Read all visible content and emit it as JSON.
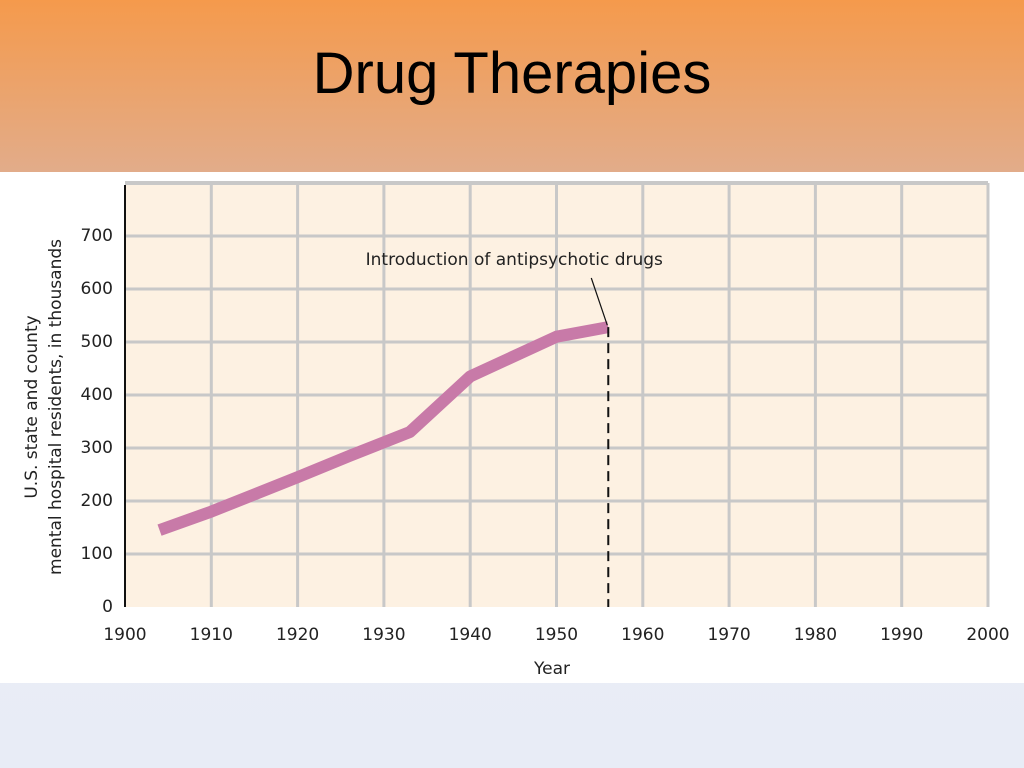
{
  "title": "Drug Therapies",
  "chart_data": {
    "type": "line",
    "x_label": "Year",
    "y_label": [
      "U.S. state and county",
      "mental hospital residents, in thousands"
    ],
    "x": [
      1904,
      1910,
      1920,
      1926,
      1933,
      1940,
      1950,
      1956
    ],
    "values": [
      145,
      180,
      245,
      285,
      330,
      435,
      510,
      528
    ],
    "color": "#c87aa8",
    "xlim": [
      1900,
      2000
    ],
    "xticks": [
      1900,
      1910,
      1920,
      1930,
      1940,
      1950,
      1960,
      1970,
      1980,
      1990,
      2000
    ],
    "ylim": [
      0,
      800
    ],
    "yticks": [
      0,
      100,
      200,
      300,
      400,
      500,
      600,
      700
    ],
    "grid": true,
    "annotation": {
      "text": "Introduction of antipsychotic drugs",
      "x": 1956
    }
  }
}
